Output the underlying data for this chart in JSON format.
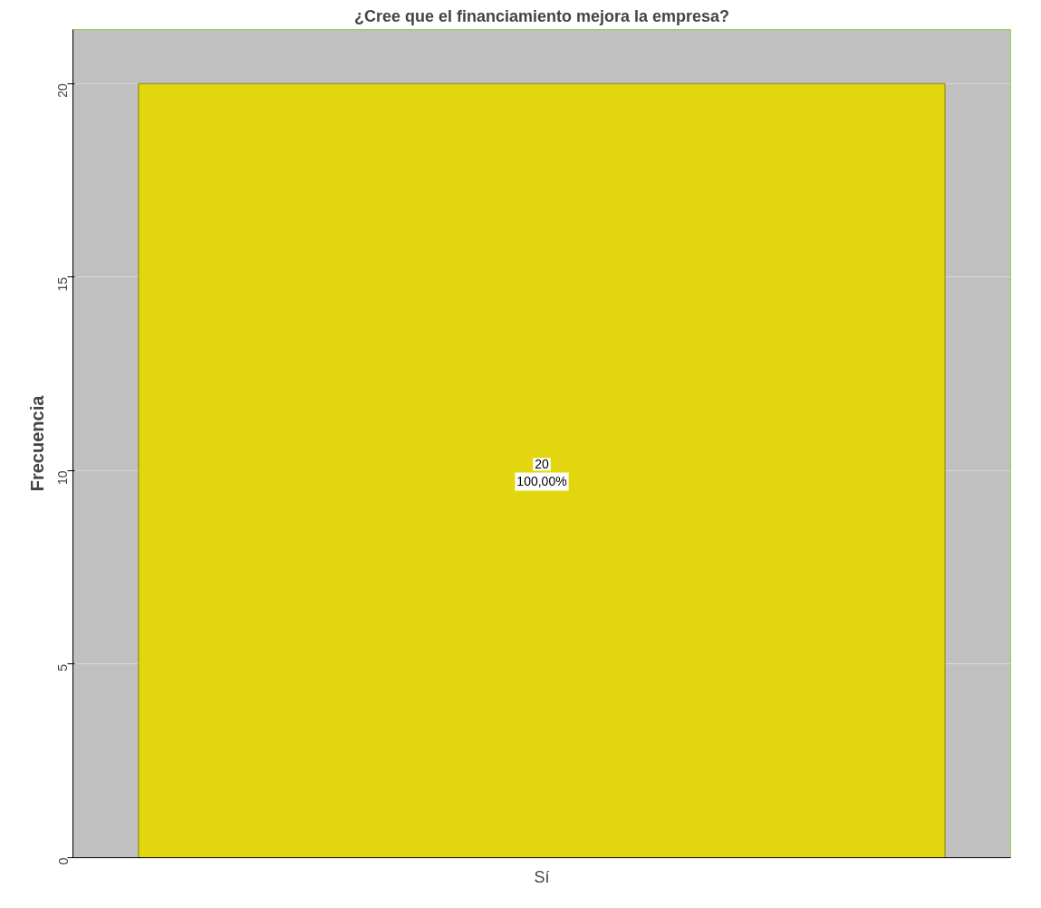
{
  "chart_data": {
    "type": "bar",
    "title": "¿Cree que el financiamiento mejora la empresa?",
    "ylabel": "Frecuencia",
    "categories": [
      "Sí"
    ],
    "values": [
      20
    ],
    "color": "#e2d70f",
    "value_labels": [
      "20"
    ],
    "annotations": [
      "100,00%"
    ],
    "ylim": [
      0,
      21.4
    ],
    "yticks": [
      0,
      5,
      10,
      15,
      20
    ],
    "grid": "y"
  }
}
